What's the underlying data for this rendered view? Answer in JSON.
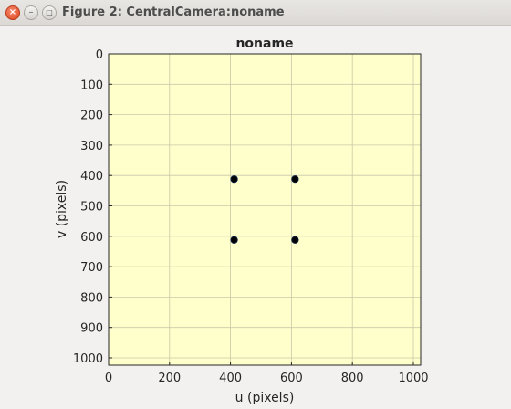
{
  "window": {
    "title": "Figure 2: CentralCamera:noname",
    "controls": {
      "close_glyph": "×",
      "minimize_glyph": "–",
      "maximize_glyph": "□"
    }
  },
  "chart_data": {
    "type": "scatter",
    "title": "noname",
    "xlabel": "u (pixels)",
    "ylabel": "v (pixels)",
    "xlim": [
      0,
      1024
    ],
    "ylim": [
      0,
      1024
    ],
    "y_inverted": true,
    "grid": true,
    "xticks": [
      0,
      200,
      400,
      600,
      800,
      1000
    ],
    "yticks": [
      0,
      100,
      200,
      300,
      400,
      500,
      600,
      700,
      800,
      900,
      1000
    ],
    "background_color": "#ffffcc",
    "marker_color": "#000000",
    "grid_color": "#c8c8a8",
    "points": [
      {
        "u": 412,
        "v": 412
      },
      {
        "u": 612,
        "v": 412
      },
      {
        "u": 412,
        "v": 612
      },
      {
        "u": 612,
        "v": 612
      }
    ]
  }
}
